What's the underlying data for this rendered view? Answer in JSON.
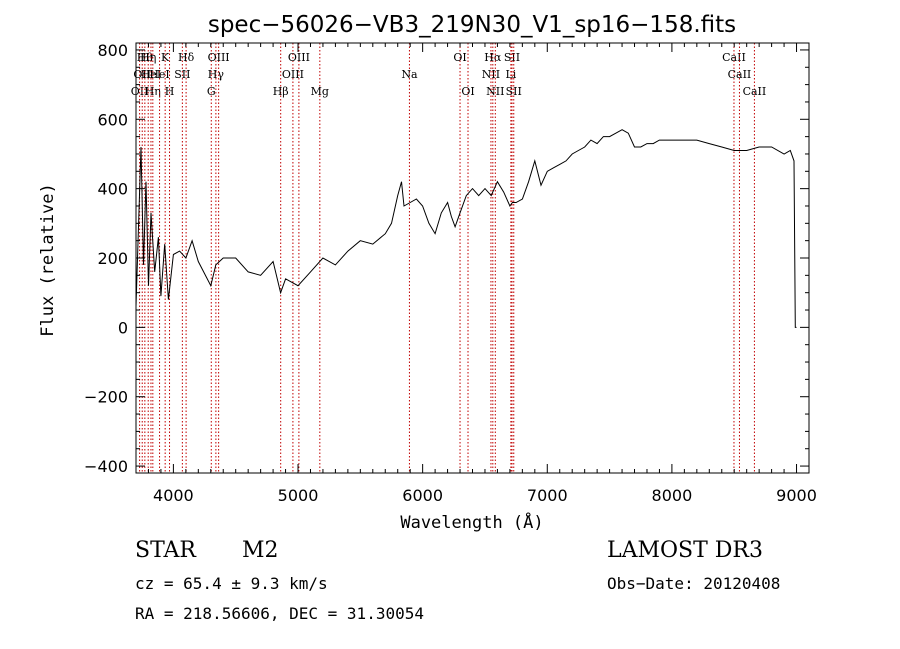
{
  "chart_data": {
    "type": "line",
    "title": "spec−56026−VB3_219N30_V1_sp16−158.fits",
    "xlabel": "Wavelength (Å)",
    "ylabel": "Flux (relative)",
    "xlim": [
      3700,
      9100
    ],
    "ylim": [
      -420,
      820
    ],
    "xticks": [
      4000,
      5000,
      6000,
      7000,
      8000,
      9000
    ],
    "xtick_labels": [
      "4000",
      "5000",
      "6000",
      "7000",
      "8000",
      "9000"
    ],
    "yticks": [
      -400,
      -200,
      0,
      200,
      400,
      600,
      800
    ],
    "ytick_labels": [
      "−400",
      "−200",
      "0",
      "200",
      "400",
      "600",
      "800"
    ],
    "series": [
      {
        "name": "flux",
        "x": [
          3700,
          3740,
          3760,
          3780,
          3800,
          3820,
          3850,
          3880,
          3900,
          3930,
          3960,
          4000,
          4050,
          4100,
          4150,
          4200,
          4300,
          4340,
          4400,
          4500,
          4600,
          4700,
          4800,
          4860,
          4900,
          5000,
          5100,
          5200,
          5300,
          5400,
          5500,
          5600,
          5700,
          5750,
          5800,
          5830,
          5850,
          5900,
          5950,
          6000,
          6050,
          6100,
          6150,
          6200,
          6230,
          6260,
          6300,
          6350,
          6400,
          6450,
          6500,
          6550,
          6600,
          6650,
          6700,
          6720,
          6750,
          6800,
          6850,
          6900,
          6950,
          7000,
          7050,
          7100,
          7150,
          7200,
          7250,
          7300,
          7350,
          7400,
          7450,
          7500,
          7550,
          7600,
          7650,
          7700,
          7750,
          7800,
          7850,
          7900,
          8000,
          8100,
          8200,
          8300,
          8400,
          8500,
          8600,
          8700,
          8800,
          8900,
          8950,
          8980,
          8990,
          9000
        ],
        "y": [
          60,
          520,
          180,
          420,
          120,
          330,
          160,
          260,
          90,
          240,
          80,
          210,
          220,
          200,
          250,
          190,
          120,
          180,
          200,
          200,
          160,
          150,
          190,
          100,
          140,
          120,
          160,
          200,
          180,
          220,
          250,
          240,
          270,
          300,
          380,
          420,
          350,
          360,
          370,
          350,
          300,
          270,
          330,
          360,
          320,
          290,
          330,
          380,
          400,
          380,
          400,
          380,
          420,
          390,
          350,
          360,
          360,
          370,
          420,
          480,
          410,
          450,
          460,
          470,
          480,
          500,
          510,
          520,
          540,
          530,
          550,
          550,
          560,
          570,
          560,
          520,
          520,
          530,
          530,
          540,
          540,
          540,
          540,
          530,
          520,
          510,
          510,
          520,
          520,
          500,
          510,
          480,
          0,
          0
        ]
      }
    ],
    "lines": [
      {
        "wl": 3729,
        "row": 2,
        "label": "OII"
      },
      {
        "wl": 3750,
        "row": 1,
        "label": "OII"
      },
      {
        "wl": 3771,
        "row": 0,
        "label": "Hθ"
      },
      {
        "wl": 3798,
        "row": 0,
        "label": "Hη"
      },
      {
        "wl": 3820,
        "row": 1,
        "label": "HeI"
      },
      {
        "wl": 3835,
        "row": 2,
        "label": "Hη"
      },
      {
        "wl": 3889,
        "row": 1,
        "label": "HeI"
      },
      {
        "wl": 3934,
        "row": 0,
        "label": "K"
      },
      {
        "wl": 3969,
        "row": 2,
        "label": "H"
      },
      {
        "wl": 4072,
        "row": 1,
        "label": "SII"
      },
      {
        "wl": 4102,
        "row": 0,
        "label": "Hδ"
      },
      {
        "wl": 4304,
        "row": 2,
        "label": "G"
      },
      {
        "wl": 4341,
        "row": 1,
        "label": "Hγ"
      },
      {
        "wl": 4363,
        "row": 0,
        "label": "OIII"
      },
      {
        "wl": 4861,
        "row": 2,
        "label": "Hβ"
      },
      {
        "wl": 4959,
        "row": 1,
        "label": "OIII"
      },
      {
        "wl": 5007,
        "row": 0,
        "label": "OIII"
      },
      {
        "wl": 5175,
        "row": 2,
        "label": "Mg"
      },
      {
        "wl": 5894,
        "row": 1,
        "label": "Na"
      },
      {
        "wl": 6300,
        "row": 0,
        "label": "OI"
      },
      {
        "wl": 6364,
        "row": 2,
        "label": "OI"
      },
      {
        "wl": 6548,
        "row": 1,
        "label": "NII"
      },
      {
        "wl": 6563,
        "row": 0,
        "label": "Hα"
      },
      {
        "wl": 6583,
        "row": 2,
        "label": "NII"
      },
      {
        "wl": 6708,
        "row": 1,
        "label": "Li"
      },
      {
        "wl": 6717,
        "row": 0,
        "label": "SII"
      },
      {
        "wl": 6731,
        "row": 2,
        "label": "SII"
      },
      {
        "wl": 8498,
        "row": 0,
        "label": "CaII"
      },
      {
        "wl": 8542,
        "row": 1,
        "label": "CaII"
      },
      {
        "wl": 8662,
        "row": 2,
        "label": "CaII"
      }
    ]
  },
  "info": {
    "class_label": "STAR",
    "subclass": "M2",
    "survey": "LAMOST DR3",
    "cz": "cz = 65.4 ± 9.3 km/s",
    "obs_date": "Obs−Date: 20120408",
    "coords": "RA = 218.56606, DEC =  31.30054"
  }
}
